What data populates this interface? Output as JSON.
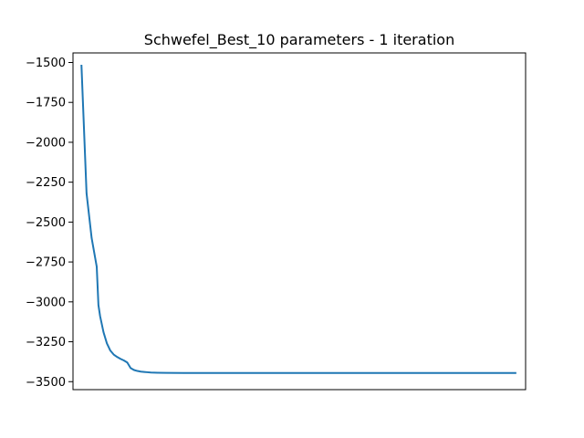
{
  "chart_data": {
    "type": "line",
    "title": "Schwefel_Best_10 parameters - 1 iteration",
    "xlabel": "",
    "ylabel": "",
    "x_ticks_visible": false,
    "grid": false,
    "legend": "none",
    "ylim": [
      -3550,
      -1440
    ],
    "xlim": [
      -5,
      262
    ],
    "yticks": [
      -1500,
      -1750,
      -2000,
      -2250,
      -2500,
      -2750,
      -3000,
      -3250,
      -3500
    ],
    "ytick_labels": [
      "−1500",
      "−1750",
      "−2000",
      "−2250",
      "−2500",
      "−2750",
      "−3000",
      "−3250",
      "−3500"
    ],
    "series": [
      {
        "color": "#1f77b4",
        "x": [
          0,
          3,
          6,
          9,
          10,
          11,
          13,
          15,
          17,
          19,
          21,
          23,
          25,
          27,
          29,
          31,
          33,
          35,
          37,
          39,
          41,
          45,
          50,
          60,
          80,
          100,
          150,
          200,
          256
        ],
        "y": [
          -1520,
          -2320,
          -2600,
          -2780,
          -3020,
          -3090,
          -3190,
          -3260,
          -3305,
          -3330,
          -3345,
          -3357,
          -3367,
          -3380,
          -3415,
          -3427,
          -3433,
          -3437,
          -3439,
          -3441,
          -3443,
          -3444,
          -3445,
          -3446,
          -3446,
          -3446,
          -3446,
          -3446,
          -3446
        ]
      }
    ]
  }
}
